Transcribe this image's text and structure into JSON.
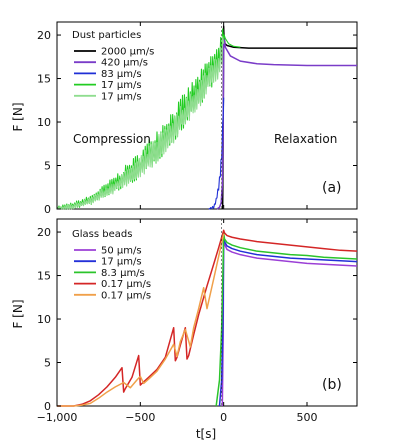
{
  "chart_data": [
    {
      "type": "line",
      "panel_label": "(a)",
      "legend_title": "Dust particles",
      "annotations": [
        "Compression",
        "Relaxation"
      ],
      "xlabel": "",
      "ylabel": "F [N]",
      "xlim": [
        -1000,
        800
      ],
      "ylim": [
        0,
        21.5
      ],
      "xticks": [],
      "yticks": [
        0,
        5,
        10,
        15,
        20
      ],
      "ytick_labels": [
        "0",
        "5",
        "10",
        "15",
        "20"
      ],
      "legend_position": "top-left",
      "series": [
        {
          "name": "2000 μm/s",
          "color": "#000000",
          "kind": "spike",
          "x": [
            -9,
            -6,
            -4,
            -2,
            0,
            1,
            3,
            8,
            20,
            60,
            150,
            400,
            800
          ],
          "y": [
            0,
            0.4,
            5,
            13,
            21,
            20.3,
            19.6,
            19.0,
            18.8,
            18.6,
            18.5,
            18.5,
            18.5
          ]
        },
        {
          "name": "420 μm/s",
          "color": "#7a3cc8",
          "kind": "ramp",
          "x": [
            -40,
            -25,
            -15,
            -8,
            -4,
            -1,
            0,
            2,
            10,
            40,
            100,
            200,
            300,
            500,
            800
          ],
          "y": [
            0,
            0.2,
            0.7,
            2.8,
            7.5,
            14.5,
            19.8,
            19.6,
            18.6,
            17.6,
            17.0,
            16.7,
            16.6,
            16.5,
            16.5
          ]
        },
        {
          "name": "83 μm/s",
          "color": "#1f2fd6",
          "kind": "noisy",
          "x": [
            -90,
            -60,
            -45,
            -30,
            -20,
            -12,
            -6,
            -2,
            0
          ],
          "y": [
            0,
            0.2,
            1.0,
            2.5,
            4.0,
            6.5,
            9.0,
            11.5,
            12.8
          ],
          "noise": 0.9
        },
        {
          "name": "17 μm/s",
          "color": "#22cc22",
          "kind": "noisy",
          "x": [
            -1000,
            -900,
            -800,
            -700,
            -600,
            -500,
            -400,
            -300,
            -200,
            -150,
            -100,
            -60,
            -30,
            0,
            3,
            10,
            30,
            60,
            100
          ],
          "y": [
            0,
            0.4,
            1.0,
            2.2,
            3.6,
            5.1,
            7.3,
            9.6,
            12.4,
            13.6,
            15.1,
            16.3,
            17.0,
            19.5,
            20.0,
            19.6,
            19.0,
            18.7,
            18.6
          ],
          "noise": 2.0
        },
        {
          "name": "17 μm/s",
          "color": "#8fdd8f",
          "kind": "noisy",
          "x": [
            -1000,
            -900,
            -800,
            -700,
            -600,
            -500,
            -400,
            -300,
            -200,
            -150,
            -100,
            -60,
            -30,
            0
          ],
          "y": [
            0,
            0.3,
            0.9,
            2.0,
            3.3,
            4.8,
            6.9,
            9.1,
            11.9,
            13.1,
            14.6,
            15.8,
            16.6,
            19.0
          ],
          "noise": 1.6
        }
      ]
    },
    {
      "type": "line",
      "panel_label": "(b)",
      "legend_title": "Glass beads",
      "annotations": [],
      "xlabel": "t[s]",
      "ylabel": "F [N]",
      "xlim": [
        -1000,
        800
      ],
      "ylim": [
        0,
        21.5
      ],
      "xticks": [
        -1000,
        -500,
        0,
        500
      ],
      "xtick_labels": [
        "−1,000",
        "−500",
        "0",
        "500"
      ],
      "yticks": [
        0,
        5,
        10,
        15,
        20
      ],
      "ytick_labels": [
        "0",
        "5",
        "10",
        "15",
        "20"
      ],
      "legend_position": "top-left",
      "series": [
        {
          "name": "50 μm/s",
          "color": "#9b3fd6",
          "kind": "line",
          "x": [
            -8,
            -3,
            0,
            5,
            20,
            50,
            100,
            200,
            300,
            400,
            500,
            600,
            700,
            800
          ],
          "y": [
            0,
            8,
            19.5,
            18.6,
            18.0,
            17.7,
            17.4,
            17.0,
            16.8,
            16.6,
            16.4,
            16.3,
            16.2,
            16.1
          ]
        },
        {
          "name": "17 μm/s",
          "color": "#2430d8",
          "kind": "line",
          "x": [
            -25,
            -12,
            -5,
            -2,
            0,
            5,
            20,
            50,
            100,
            200,
            300,
            400,
            500,
            600,
            700,
            800
          ],
          "y": [
            0,
            3,
            9,
            15,
            19.6,
            18.9,
            18.4,
            18.1,
            17.8,
            17.4,
            17.2,
            17.0,
            16.9,
            16.8,
            16.7,
            16.6
          ]
        },
        {
          "name": "8.3 μm/s",
          "color": "#2bc42b",
          "kind": "line",
          "x": [
            -45,
            -25,
            -12,
            -5,
            0,
            5,
            20,
            50,
            100,
            200,
            300,
            400,
            500,
            600,
            700,
            800
          ],
          "y": [
            0,
            3,
            9,
            15,
            19.9,
            19.2,
            18.8,
            18.5,
            18.2,
            17.8,
            17.6,
            17.4,
            17.3,
            17.1,
            17.0,
            16.9
          ]
        },
        {
          "name": "0.17 μm/s",
          "color": "#d42626",
          "kind": "line",
          "x": [
            -1000,
            -900,
            -850,
            -800,
            -750,
            -700,
            -650,
            -610,
            -600,
            -590,
            -550,
            -510,
            -500,
            -490,
            -450,
            -400,
            -350,
            -300,
            -290,
            -280,
            -260,
            -230,
            -220,
            -210,
            -180,
            -150,
            -100,
            -60,
            -30,
            0,
            5,
            20,
            50,
            100,
            200,
            300,
            400,
            500,
            600,
            700,
            800
          ],
          "y": [
            0,
            0,
            0.2,
            0.6,
            1.3,
            2.2,
            3.3,
            4.4,
            1.6,
            2.0,
            3.3,
            5.8,
            2.4,
            2.6,
            3.3,
            4.2,
            5.6,
            9.0,
            5.2,
            5.6,
            7.0,
            9.0,
            5.4,
            5.8,
            8.2,
            10.5,
            13.8,
            16.3,
            18.2,
            20.2,
            19.9,
            19.6,
            19.4,
            19.2,
            18.9,
            18.7,
            18.5,
            18.3,
            18.1,
            17.9,
            17.8
          ]
        },
        {
          "name": "0.17 μm/s",
          "color": "#f0a04a",
          "kind": "line",
          "x": [
            -1000,
            -900,
            -850,
            -800,
            -750,
            -700,
            -650,
            -600,
            -560,
            -520,
            -500,
            -480,
            -450,
            -400,
            -350,
            -300,
            -280,
            -260,
            -230,
            -200,
            -180,
            -150,
            -120,
            -100,
            -60,
            -30,
            0
          ],
          "y": [
            0,
            0,
            0.1,
            0.3,
            0.9,
            1.6,
            2.2,
            2.7,
            2.1,
            3.0,
            3.4,
            2.6,
            3.1,
            4.0,
            5.4,
            7.1,
            5.7,
            7.4,
            8.8,
            6.8,
            9.0,
            11.2,
            13.6,
            11.2,
            14.6,
            17.2,
            19.8
          ]
        }
      ]
    }
  ]
}
